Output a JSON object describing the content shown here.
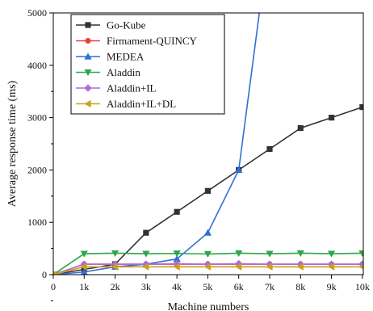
{
  "chart_data": {
    "type": "line",
    "title": "",
    "xlabel": "Machine numbers",
    "ylabel": "Average response time (ms)",
    "categories": [
      "0",
      "1k",
      "2k",
      "3k",
      "4k",
      "5k",
      "6k",
      "7k",
      "8k",
      "9k",
      "10k"
    ],
    "ylim": [
      0,
      5000
    ],
    "yticks": [
      0,
      1000,
      2000,
      3000,
      4000,
      5000
    ],
    "grid": false,
    "legend_position": "top-left",
    "series": [
      {
        "name": "Go-Kube",
        "color": "#333333",
        "marker": "square",
        "values": [
          0,
          100,
          200,
          800,
          1200,
          1600,
          2000,
          2400,
          2800,
          3000,
          3200
        ]
      },
      {
        "name": "Firmament-QUINCY",
        "color": "#e8443a",
        "marker": "circle",
        "values": [
          0,
          200,
          200,
          200,
          200,
          200,
          200,
          200,
          200,
          200,
          200
        ]
      },
      {
        "name": "MEDEA",
        "color": "#2f6fd6",
        "marker": "triangle-up",
        "values": [
          0,
          50,
          150,
          200,
          300,
          800,
          2000,
          6500,
          null,
          null,
          null
        ]
      },
      {
        "name": "Aladdin",
        "color": "#2aa84a",
        "marker": "triangle-down",
        "values": [
          0,
          400,
          410,
          400,
          405,
          395,
          410,
          400,
          410,
          400,
          410
        ]
      },
      {
        "name": "Aladdin+IL",
        "color": "#b06ad9",
        "marker": "diamond",
        "values": [
          0,
          200,
          200,
          200,
          210,
          200,
          210,
          200,
          200,
          200,
          200
        ]
      },
      {
        "name": "Aladdin+IL+DL",
        "color": "#c9a21a",
        "marker": "triangle-left",
        "values": [
          0,
          150,
          150,
          150,
          150,
          150,
          150,
          150,
          150,
          150,
          150
        ]
      }
    ]
  }
}
